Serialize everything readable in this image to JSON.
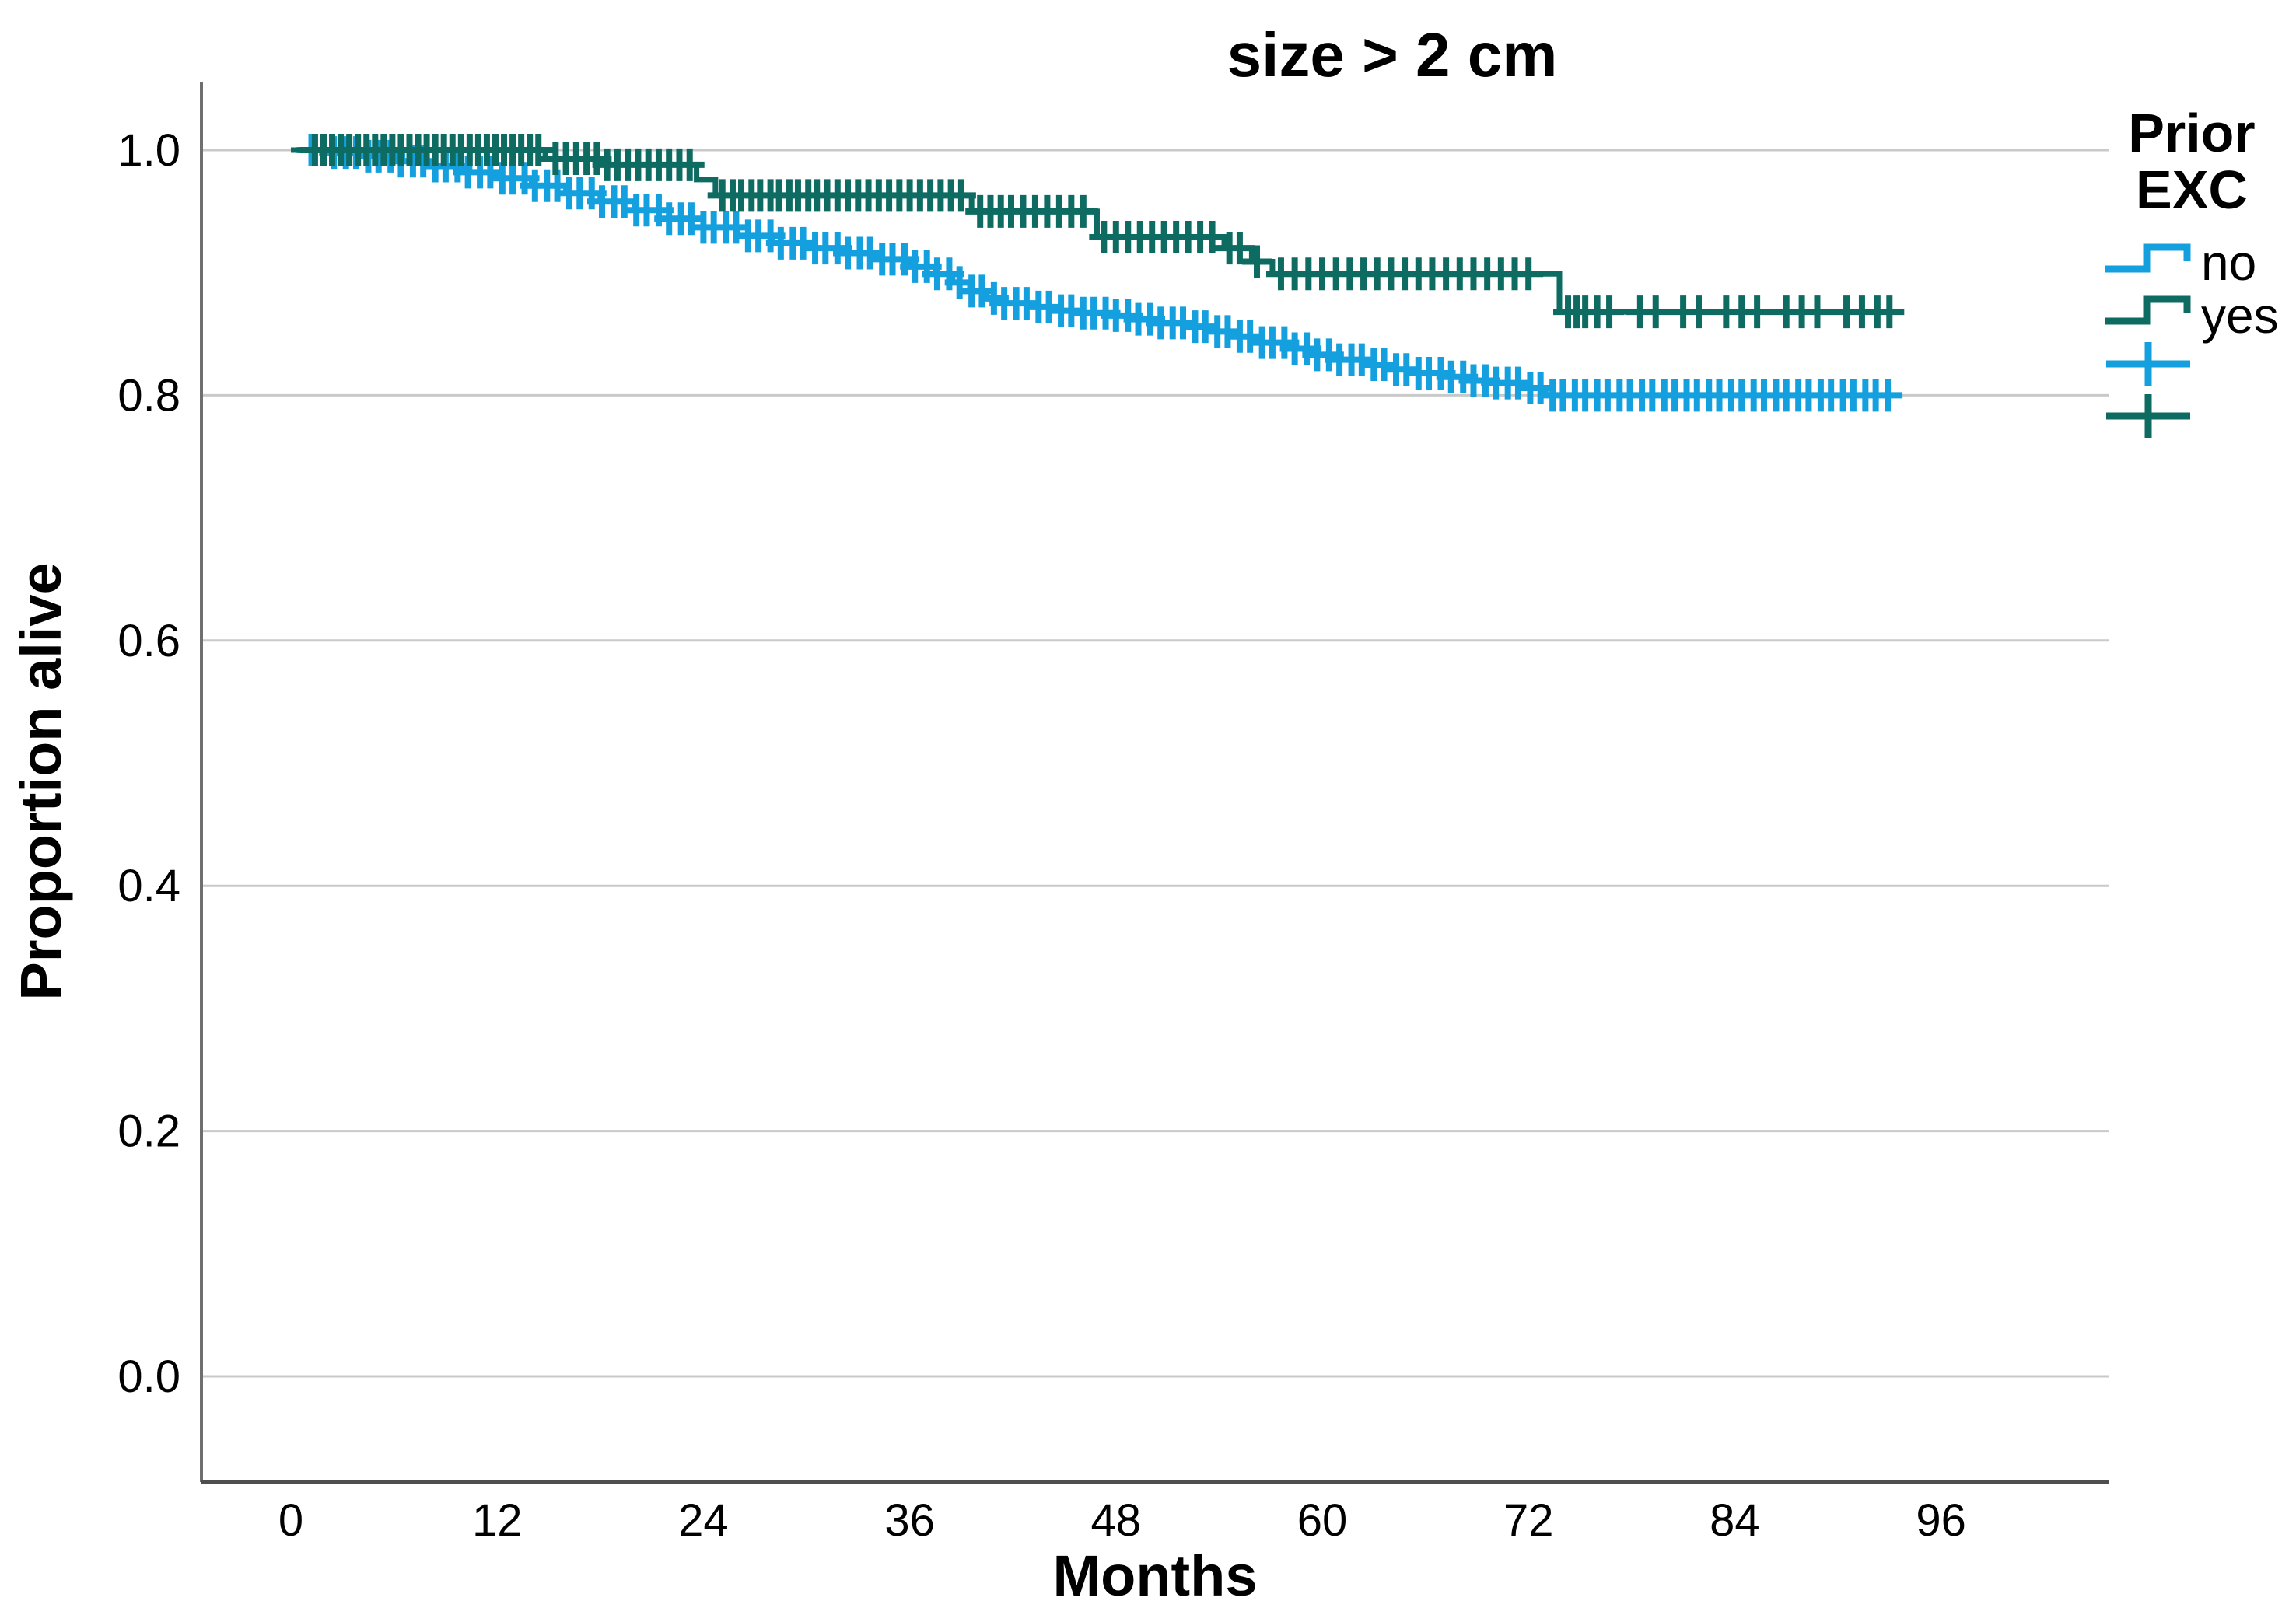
{
  "figure": {
    "title": "size > 2 cm",
    "legend": {
      "title_line1": "Prior",
      "title_line2": "EXC"
    }
  },
  "colors": {
    "no": "#149FDE",
    "yes": "#0D6B62",
    "grid": "#c9c9c9",
    "axis_left": "#6f6f6f",
    "axis_bottom": "#4e4e4e",
    "text": "#000000"
  },
  "chart_data": {
    "type": "line",
    "subtype": "kaplan-meier-step-with-censoring",
    "title": "size > 2 cm",
    "xlabel": "Months",
    "ylabel": "Proportion alive",
    "xlim": [
      -5.2,
      105.8
    ],
    "ylim": [
      -0.086,
      1.056
    ],
    "x_ticks": [
      0,
      12,
      24,
      36,
      48,
      60,
      72,
      84,
      96
    ],
    "y_ticks": [
      0.0,
      0.2,
      0.4,
      0.6,
      0.8,
      1.0
    ],
    "grid": "horizontal-only",
    "legend_position": "outside-top-right",
    "legend_title": "Prior EXC",
    "series": [
      {
        "name": "no",
        "color": "#149FDE",
        "end_month": 93.5,
        "steps": [
          [
            0,
            1.0
          ],
          [
            2,
            0.998
          ],
          [
            4,
            0.995
          ],
          [
            6,
            0.991
          ],
          [
            8,
            0.987
          ],
          [
            10,
            0.982
          ],
          [
            12,
            0.977
          ],
          [
            14,
            0.971
          ],
          [
            16,
            0.965
          ],
          [
            18,
            0.958
          ],
          [
            20,
            0.951
          ],
          [
            22,
            0.944
          ],
          [
            24,
            0.937
          ],
          [
            26,
            0.93
          ],
          [
            28,
            0.924
          ],
          [
            30,
            0.92
          ],
          [
            32,
            0.916
          ],
          [
            34,
            0.911
          ],
          [
            36,
            0.905
          ],
          [
            37.5,
            0.899
          ],
          [
            38.5,
            0.892
          ],
          [
            39.5,
            0.885
          ],
          [
            40.5,
            0.879
          ],
          [
            41.5,
            0.875
          ],
          [
            43,
            0.872
          ],
          [
            44.5,
            0.869
          ],
          [
            46,
            0.867
          ],
          [
            47.5,
            0.865
          ],
          [
            49,
            0.862
          ],
          [
            50.5,
            0.859
          ],
          [
            52,
            0.856
          ],
          [
            53.5,
            0.852
          ],
          [
            55,
            0.848
          ],
          [
            56.5,
            0.843
          ],
          [
            58,
            0.838
          ],
          [
            59.5,
            0.833
          ],
          [
            61,
            0.829
          ],
          [
            62.5,
            0.825
          ],
          [
            64,
            0.821
          ],
          [
            65.5,
            0.818
          ],
          [
            67,
            0.815
          ],
          [
            68.5,
            0.812
          ],
          [
            70,
            0.81
          ],
          [
            71.5,
            0.806
          ],
          [
            73,
            0.8
          ]
        ],
        "censor_months": [
          1.2,
          1.9,
          2.5,
          3.2,
          3.8,
          4.5,
          5.1,
          5.8,
          6.4,
          7.1,
          7.7,
          8.4,
          9.0,
          9.7,
          10.3,
          11.0,
          11.6,
          12.3,
          12.9,
          13.6,
          14.2,
          14.9,
          15.5,
          16.2,
          16.8,
          17.5,
          18.1,
          18.8,
          19.4,
          20.1,
          20.7,
          21.4,
          22.0,
          22.7,
          23.3,
          24.0,
          24.6,
          25.3,
          25.9,
          26.6,
          27.2,
          27.9,
          28.5,
          29.2,
          29.8,
          30.5,
          31.1,
          31.8,
          32.4,
          33.1,
          33.7,
          34.4,
          35.0,
          35.7,
          36.3,
          37.0,
          37.6,
          38.3,
          38.9,
          39.6,
          40.2,
          40.9,
          41.5,
          42.2,
          42.8,
          43.5,
          44.1,
          44.8,
          45.4,
          46.1,
          46.7,
          47.4,
          48.0,
          48.7,
          49.3,
          50.0,
          50.6,
          51.3,
          51.9,
          52.6,
          53.2,
          53.9,
          54.5,
          55.2,
          55.8,
          56.5,
          57.1,
          57.8,
          58.4,
          59.1,
          59.7,
          60.4,
          61.0,
          61.7,
          62.3,
          63.0,
          63.6,
          64.3,
          64.9,
          65.6,
          66.2,
          66.9,
          67.5,
          68.2,
          68.8,
          69.5,
          70.1,
          70.8,
          71.4,
          72.1,
          72.7,
          73.4,
          74.0,
          74.7,
          75.3,
          76.0,
          76.6,
          77.3,
          77.9,
          78.6,
          79.2,
          79.9,
          80.5,
          81.2,
          81.8,
          82.5,
          83.1,
          83.8,
          84.4,
          85.1,
          85.7,
          86.4,
          87.0,
          87.7,
          88.3,
          89.0,
          89.6,
          90.3,
          90.9,
          91.6,
          92.2,
          92.9
        ]
      },
      {
        "name": "yes",
        "color": "#0D6B62",
        "end_month": 93.4,
        "steps": [
          [
            0,
            1.0
          ],
          [
            14.8,
            0.993
          ],
          [
            18.2,
            0.988
          ],
          [
            23.6,
            0.976
          ],
          [
            24.7,
            0.963
          ],
          [
            39.6,
            0.95
          ],
          [
            46.9,
            0.929
          ],
          [
            54.3,
            0.92
          ],
          [
            55.9,
            0.909
          ],
          [
            57.1,
            0.899
          ],
          [
            73.8,
            0.868
          ]
        ],
        "censor_months": [
          1.4,
          1.9,
          2.4,
          2.9,
          3.4,
          3.9,
          4.4,
          4.9,
          5.4,
          5.9,
          6.4,
          6.9,
          7.4,
          7.9,
          8.4,
          8.9,
          9.4,
          9.9,
          10.4,
          10.9,
          11.4,
          11.9,
          12.4,
          12.9,
          13.4,
          13.9,
          14.4,
          15.4,
          16.0,
          16.6,
          17.2,
          17.8,
          18.4,
          19.0,
          19.6,
          20.2,
          20.8,
          21.4,
          22.0,
          22.6,
          23.2,
          25.1,
          25.7,
          26.2,
          26.8,
          27.3,
          27.9,
          28.4,
          29.0,
          29.5,
          30.1,
          30.6,
          31.2,
          31.8,
          32.4,
          33.0,
          33.6,
          34.2,
          34.8,
          35.4,
          36.0,
          36.6,
          37.2,
          37.8,
          38.4,
          39.0,
          40.1,
          40.7,
          41.3,
          41.9,
          42.6,
          43.3,
          44.0,
          44.7,
          45.4,
          46.1,
          47.3,
          48.0,
          48.7,
          49.4,
          50.1,
          50.8,
          51.5,
          52.2,
          52.9,
          53.6,
          54.6,
          55.2,
          56.2,
          57.6,
          58.4,
          59.2,
          60.0,
          60.8,
          61.6,
          62.4,
          63.2,
          64.0,
          64.8,
          65.6,
          66.4,
          67.2,
          68.0,
          68.8,
          69.6,
          70.4,
          71.2,
          72.0,
          74.3,
          74.8,
          75.3,
          76.0,
          76.7,
          78.5,
          79.4,
          81.0,
          81.9,
          83.5,
          84.4,
          85.3,
          87.0,
          87.9,
          88.8,
          90.5,
          91.4,
          92.3,
          93.0
        ]
      }
    ]
  }
}
